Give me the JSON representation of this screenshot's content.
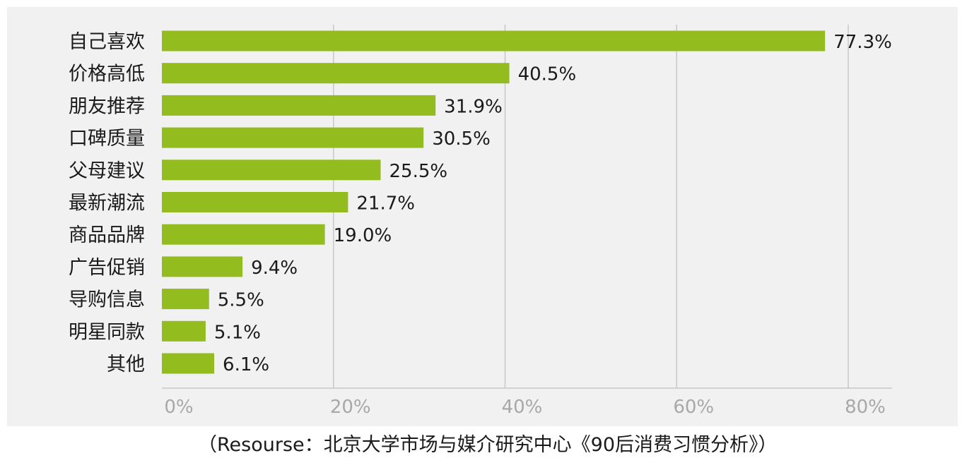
{
  "chart_data": {
    "type": "bar",
    "orientation": "horizontal",
    "categories": [
      "自己喜欢",
      "价格高低",
      "朋友推荐",
      "口碑质量",
      "父母建议",
      "最新潮流",
      "商品品牌",
      "广告促销",
      "导购信息",
      "明星同款",
      "其他"
    ],
    "values": [
      77.3,
      40.5,
      31.9,
      30.5,
      25.5,
      21.7,
      19.0,
      9.4,
      5.5,
      5.1,
      6.1
    ],
    "value_labels": [
      "77.3%",
      "40.5%",
      "31.9%",
      "30.5%",
      "25.5%",
      "21.7%",
      "19.0%",
      "9.4%",
      "5.5%",
      "5.1%",
      "6.1%"
    ],
    "x_ticks": [
      0,
      20,
      40,
      60,
      80
    ],
    "x_tick_labels": [
      "0%",
      "20%",
      "40%",
      "60%",
      "80%"
    ],
    "xlim": [
      0,
      85
    ],
    "grid": true,
    "bar_color": "#93bc1f"
  },
  "source_note": "（Resourse：北京大学市场与媒介研究中心《90后消费习惯分析》）"
}
